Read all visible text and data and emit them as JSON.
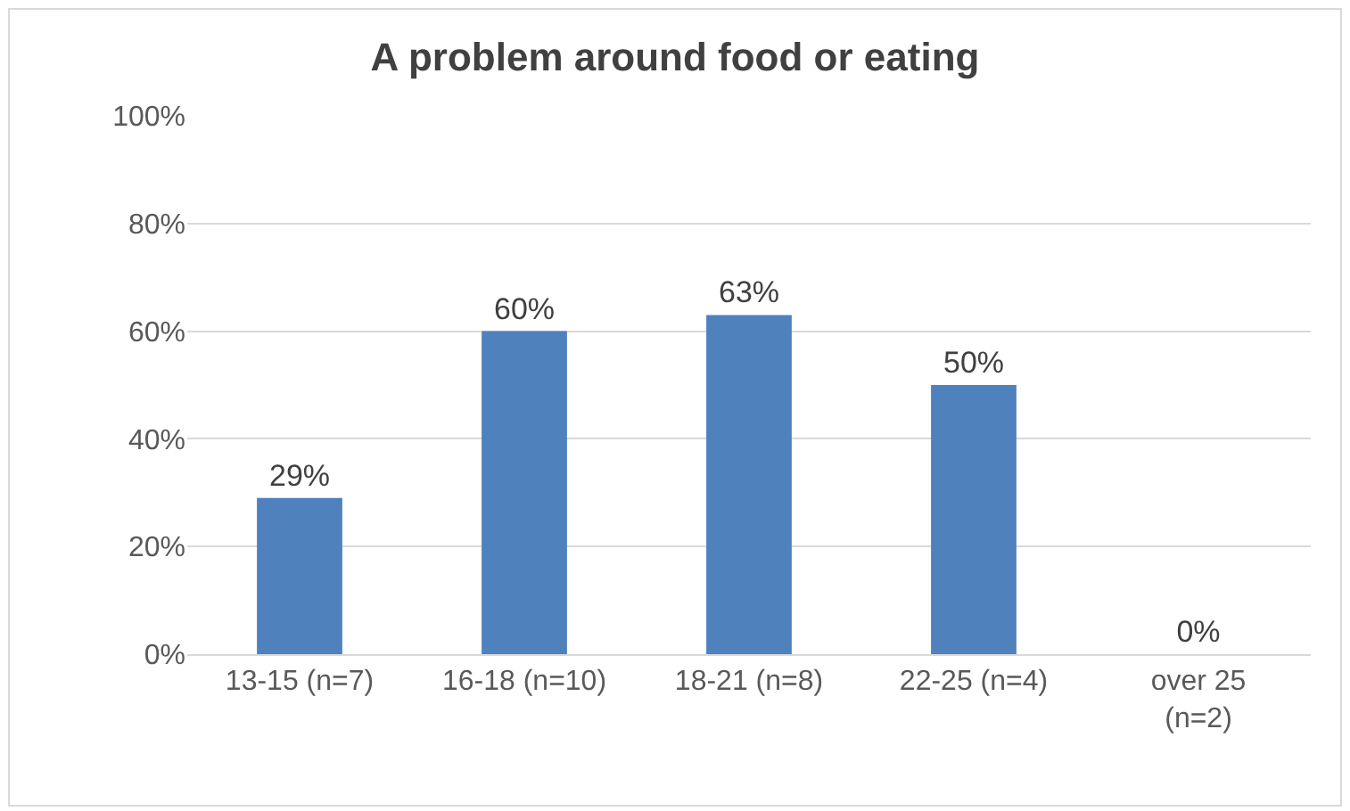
{
  "chart_data": {
    "type": "bar",
    "title": "A problem around food or eating",
    "categories": [
      "13-15 (n=7)",
      "16-18 (n=10)",
      "18-21 (n=8)",
      "22-25 (n=4)",
      "over 25\n(n=2)"
    ],
    "values": [
      29,
      60,
      63,
      50,
      0
    ],
    "color": "#4f81bd",
    "data_labels": true,
    "value_labels": [
      "29%",
      "60%",
      "63%",
      "50%",
      "0%"
    ],
    "ylim": [
      0,
      100
    ],
    "yticks": [
      {
        "value": 0,
        "label": "0%"
      },
      {
        "value": 20,
        "label": "20%"
      },
      {
        "value": 40,
        "label": "40%"
      },
      {
        "value": 60,
        "label": "60%"
      },
      {
        "value": 80,
        "label": "80%"
      },
      {
        "value": 100,
        "label": "100%"
      }
    ],
    "grid": "y",
    "legend": false
  }
}
